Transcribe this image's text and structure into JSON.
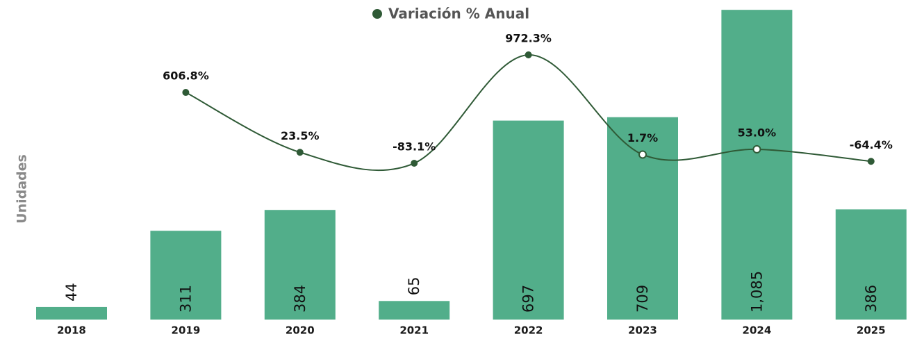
{
  "chart_data": {
    "type": "bar",
    "y_label": "Unidades",
    "categories": [
      "2018",
      "2019",
      "2020",
      "2021",
      "2022",
      "2023",
      "2024",
      "2025"
    ],
    "ylim": [
      0,
      1100
    ],
    "y2lim": [
      -200,
      1000
    ],
    "series": [
      {
        "name": "Unidades",
        "type": "bar",
        "color": "#52ae8a",
        "values": [
          44,
          311,
          384,
          65,
          697,
          709,
          1085,
          386
        ],
        "value_labels": [
          "44",
          "311",
          "384",
          "65",
          "697",
          "709",
          "1,085",
          "386"
        ]
      },
      {
        "name": "Variación % Anual",
        "type": "line",
        "axis": "y2",
        "color": "#2f5a36",
        "values": [
          null,
          606.8,
          23.5,
          -83.1,
          972.3,
          1.7,
          53.0,
          -64.4
        ],
        "value_labels": [
          null,
          "606.8%",
          "23.5%",
          "-83.1%",
          "972.3%",
          "1.7%",
          "53.0%",
          "-64.4%"
        ]
      }
    ]
  }
}
